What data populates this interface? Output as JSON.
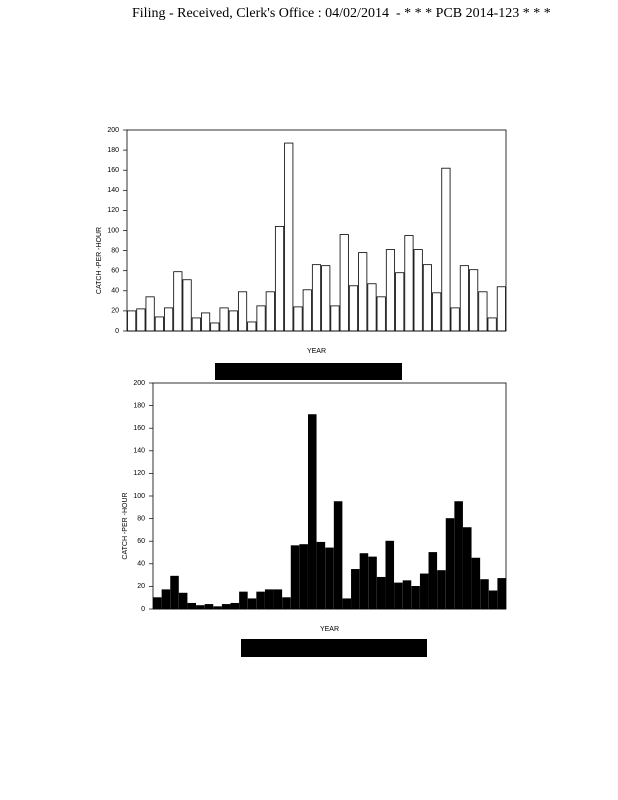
{
  "header": {
    "filing": "Filing - Received, Clerk's Office : 04/02/2014",
    "case": "- * * * PCB 2014-123 * * *"
  },
  "chart_data": [
    {
      "type": "bar",
      "ylabel": "CATCH -PER -HOUR",
      "xlabel": "YEAR",
      "color": "#ffffff",
      "edgecolor": "#000000",
      "categories": [
        null,
        null,
        null,
        null,
        null,
        null,
        null,
        null,
        null,
        null,
        null,
        null,
        null,
        null,
        null,
        null,
        null,
        null,
        null,
        null,
        null,
        null,
        null,
        null,
        null,
        null,
        null,
        null,
        null,
        null,
        null,
        null,
        null,
        null,
        null,
        null,
        null,
        null,
        null,
        null,
        null
      ],
      "values": [
        20,
        22,
        34,
        14,
        23,
        59,
        51,
        13,
        18,
        8,
        23,
        20,
        39,
        9,
        25,
        39,
        104,
        187,
        24,
        41,
        66,
        65,
        25,
        96,
        45,
        78,
        47,
        34,
        81,
        58,
        95,
        81,
        66,
        38,
        162,
        23,
        65,
        61,
        39,
        13,
        44
      ],
      "ylim": [
        0,
        200
      ],
      "yticks": [
        0,
        20,
        40,
        60,
        80,
        100,
        120,
        140,
        160,
        180,
        200
      ]
    },
    {
      "type": "bar",
      "ylabel": "CATCH -PER -HOUR",
      "xlabel": "YEAR",
      "color": "#000000",
      "edgecolor": "#000000",
      "categories": [
        null,
        null,
        null,
        null,
        null,
        null,
        null,
        null,
        null,
        null,
        null,
        null,
        null,
        null,
        null,
        null,
        null,
        null,
        null,
        null,
        null,
        null,
        null,
        null,
        null,
        null,
        null,
        null,
        null,
        null,
        null,
        null,
        null,
        null,
        null,
        null,
        null,
        null,
        null,
        null,
        null
      ],
      "values": [
        10,
        17,
        29,
        14,
        5,
        3,
        4,
        2,
        4,
        5,
        15,
        9,
        15,
        17,
        17,
        10,
        56,
        57,
        172,
        59,
        54,
        95,
        9,
        35,
        49,
        46,
        28,
        60,
        23,
        25,
        20,
        31,
        50,
        34,
        80,
        95,
        72,
        45,
        26,
        16,
        27
      ],
      "ylim": [
        0,
        200
      ],
      "yticks": [
        0,
        20,
        40,
        60,
        80,
        100,
        120,
        140,
        160,
        180,
        200
      ]
    }
  ]
}
